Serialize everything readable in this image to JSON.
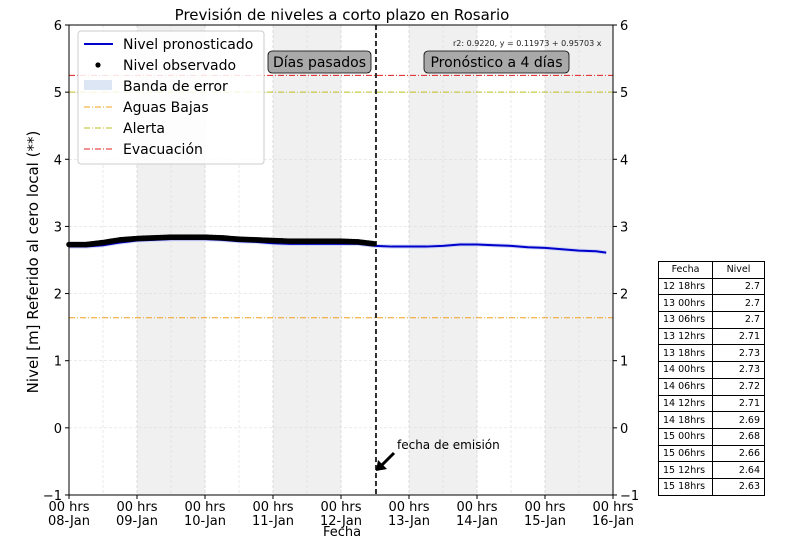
{
  "chart_data": {
    "type": "line",
    "title": "Previsión de niveles a corto plazo en Rosario",
    "xlabel": "Fecha",
    "ylabel": "Nivel [m] Referido al cero local (**)",
    "ylim": [
      -1,
      6
    ],
    "yticks": [
      -1,
      0,
      1,
      2,
      3,
      4,
      5,
      6
    ],
    "grid": true,
    "legend_position": "upper left",
    "x_ticks": [
      {
        "line1": "00 hrs",
        "line2": "08-Jan"
      },
      {
        "line1": "00 hrs",
        "line2": "09-Jan"
      },
      {
        "line1": "00 hrs",
        "line2": "10-Jan"
      },
      {
        "line1": "00 hrs",
        "line2": "11-Jan"
      },
      {
        "line1": "00 hrs",
        "line2": "12-Jan"
      },
      {
        "line1": "00 hrs",
        "line2": "13-Jan"
      },
      {
        "line1": "00 hrs",
        "line2": "14-Jan"
      },
      {
        "line1": "00 hrs",
        "line2": "15-Jan"
      },
      {
        "line1": "00 hrs",
        "line2": "16-Jan"
      }
    ],
    "x_unit": "days since 08-Jan 00hrs",
    "shaded_day_bands": [
      [
        1,
        2
      ],
      [
        3,
        4
      ],
      [
        5,
        6
      ],
      [
        7,
        8
      ]
    ],
    "emission_day": 4.5,
    "series": [
      {
        "name": "Nivel observado",
        "color": "#000000",
        "style": "dots",
        "x": [
          0,
          0.25,
          0.5,
          0.75,
          1.0,
          1.25,
          1.5,
          1.75,
          2.0,
          2.25,
          2.5,
          2.75,
          3.0,
          3.25,
          3.5,
          3.75,
          4.0,
          4.25,
          4.5
        ],
        "values": [
          2.73,
          2.73,
          2.76,
          2.8,
          2.82,
          2.83,
          2.84,
          2.84,
          2.84,
          2.83,
          2.81,
          2.8,
          2.79,
          2.78,
          2.78,
          2.78,
          2.78,
          2.77,
          2.74
        ]
      },
      {
        "name": "Nivel pronosticado",
        "color": "#0000cc",
        "style": "line",
        "x": [
          0,
          0.25,
          0.5,
          0.75,
          1.0,
          1.25,
          1.5,
          1.75,
          2.0,
          2.25,
          2.5,
          2.75,
          3.0,
          3.25,
          3.5,
          3.75,
          4.0,
          4.25,
          4.5,
          4.75,
          5.0,
          5.25,
          5.5,
          5.75,
          6.0,
          6.25,
          6.5,
          6.75,
          7.0,
          7.25,
          7.5,
          7.75,
          7.9
        ],
        "values": [
          2.7,
          2.7,
          2.72,
          2.76,
          2.79,
          2.8,
          2.81,
          2.81,
          2.81,
          2.8,
          2.78,
          2.77,
          2.75,
          2.74,
          2.74,
          2.74,
          2.74,
          2.74,
          2.71,
          2.7,
          2.7,
          2.7,
          2.71,
          2.73,
          2.73,
          2.72,
          2.71,
          2.69,
          2.68,
          2.66,
          2.64,
          2.63,
          2.61
        ]
      },
      {
        "name": "Banda de error",
        "color": "#c8d0f0",
        "style": "band",
        "half_width": 0.03
      }
    ],
    "thresholds": [
      {
        "name": "Aguas Bajas",
        "value": 1.64,
        "color": "#f0a020",
        "style": "dashdot"
      },
      {
        "name": "Alerta",
        "value": 5.0,
        "color": "#bcbd22",
        "style": "dashdot"
      },
      {
        "name": "Evacuación",
        "value": 5.25,
        "color": "#e02020",
        "style": "dashdot"
      }
    ],
    "annotations": [
      {
        "text": "Días pasados",
        "type": "box"
      },
      {
        "text": "Pronóstico a 4 días",
        "type": "box"
      },
      {
        "text": "fecha de emisión",
        "type": "arrow"
      },
      {
        "text": "r2: 0.9220, y = 0.11973 + 0.95703 x",
        "type": "text"
      }
    ],
    "table": {
      "headers": [
        "Fecha",
        "Nivel"
      ],
      "rows": [
        [
          "12 18hrs",
          "2.7"
        ],
        [
          "13 00hrs",
          "2.7"
        ],
        [
          "13 06hrs",
          "2.7"
        ],
        [
          "13 12hrs",
          "2.71"
        ],
        [
          "13 18hrs",
          "2.73"
        ],
        [
          "14 00hrs",
          "2.73"
        ],
        [
          "14 06hrs",
          "2.72"
        ],
        [
          "14 12hrs",
          "2.71"
        ],
        [
          "14 18hrs",
          "2.69"
        ],
        [
          "15 00hrs",
          "2.68"
        ],
        [
          "15 06hrs",
          "2.66"
        ],
        [
          "15 12hrs",
          "2.64"
        ],
        [
          "15 18hrs",
          "2.63"
        ]
      ]
    }
  },
  "legend": {
    "items": [
      "Nivel pronosticado",
      "Nivel observado",
      "Banda de error",
      "Aguas Bajas",
      "Alerta",
      "Evacuación"
    ]
  },
  "labels": {
    "title": "Previsión de niveles a corto plazo en Rosario",
    "xlabel": "Fecha",
    "ylabel": "Nivel [m] Referido al cero local (**)",
    "past_box": "Días pasados",
    "forecast_box": "Pronóstico a 4 días",
    "emission": "fecha de emisión",
    "regression": "r2: 0.9220, y = 0.11973 + 0.95703 x"
  }
}
